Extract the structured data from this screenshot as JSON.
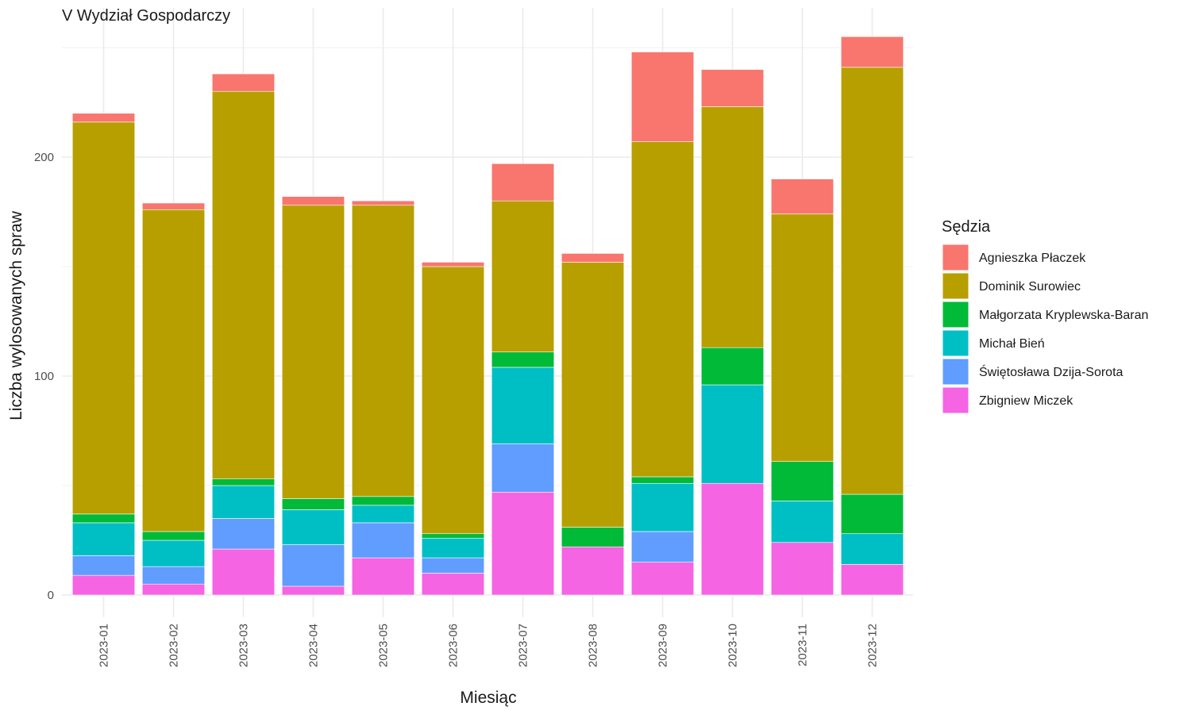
{
  "chart_data": {
    "type": "bar",
    "stacked": true,
    "title": "V Wydział Gospodarczy",
    "xlabel": "Miesiąc",
    "ylabel": "Liczba wylosowanych spraw",
    "ylim": [
      0,
      260
    ],
    "yticks": [
      0,
      100,
      200
    ],
    "grid": true,
    "legend_title": "Sędzia",
    "legend_position": "right",
    "categories": [
      "2023-01",
      "2023-02",
      "2023-03",
      "2023-04",
      "2023-05",
      "2023-06",
      "2023-07",
      "2023-08",
      "2023-09",
      "2023-10",
      "2023-11",
      "2023-12"
    ],
    "series": [
      {
        "name": "Zbigniew Miczek",
        "color": "#F564E3",
        "values": [
          9,
          5,
          21,
          4,
          17,
          10,
          47,
          22,
          15,
          51,
          24,
          14
        ]
      },
      {
        "name": "Świętosława Dzija-Sorota",
        "color": "#619CFF",
        "values": [
          9,
          8,
          14,
          19,
          16,
          7,
          22,
          0,
          14,
          0,
          0,
          0
        ]
      },
      {
        "name": "Michał Bień",
        "color": "#00BFC4",
        "values": [
          15,
          12,
          15,
          16,
          8,
          9,
          35,
          0,
          22,
          45,
          19,
          14
        ]
      },
      {
        "name": "Małgorzata Kryplewska-Baran",
        "color": "#00BA38",
        "values": [
          4,
          4,
          3,
          5,
          4,
          2,
          7,
          9,
          3,
          17,
          18,
          18
        ]
      },
      {
        "name": "Dominik Surowiec",
        "color": "#B79F00",
        "values": [
          179,
          147,
          177,
          134,
          133,
          122,
          69,
          121,
          153,
          110,
          113,
          195
        ]
      },
      {
        "name": "Agnieszka Płaczek",
        "color": "#F8766D",
        "values": [
          4,
          3,
          8,
          4,
          2,
          2,
          17,
          4,
          41,
          17,
          16,
          14
        ]
      }
    ],
    "legend_order": [
      "Agnieszka Płaczek",
      "Dominik Surowiec",
      "Małgorzata Kryplewska-Baran",
      "Michał Bień",
      "Świętosława Dzija-Sorota",
      "Zbigniew Miczek"
    ]
  }
}
